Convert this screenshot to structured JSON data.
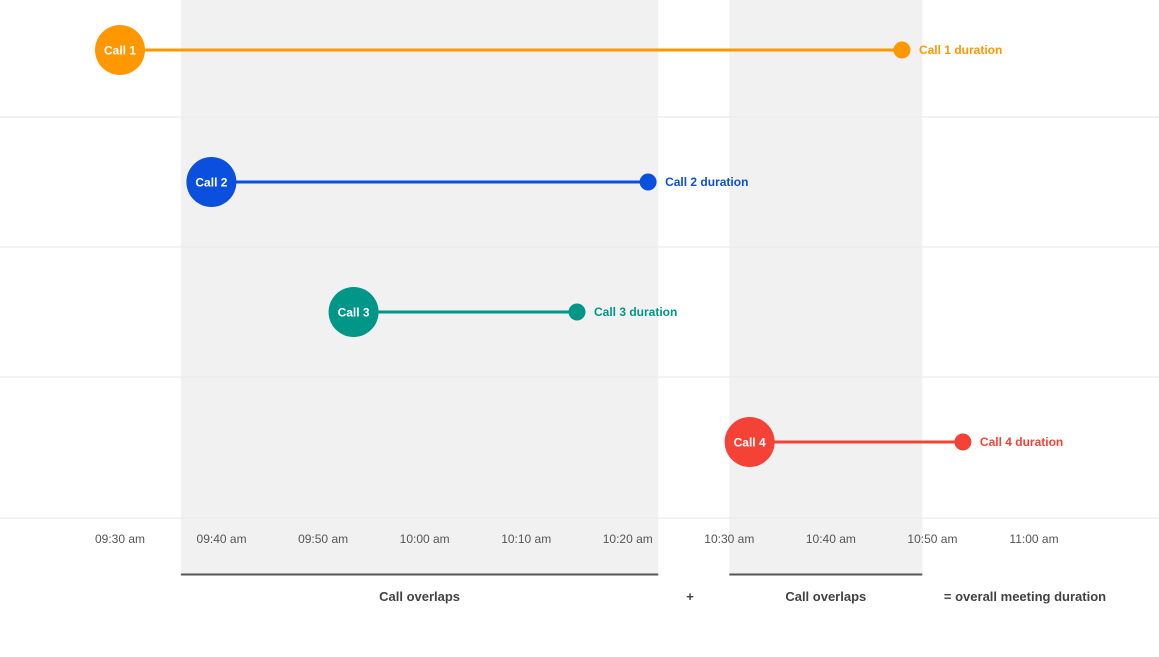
{
  "chart_data": {
    "type": "timeline",
    "x_ticks": [
      "09:30 am",
      "09:40 am",
      "09:50 am",
      "10:00 am",
      "10:10 am",
      "10:20 am",
      "10:30 am",
      "10:40 am",
      "10:50 am",
      "11:00 am"
    ],
    "x_range": [
      "09:30",
      "11:00"
    ],
    "grid": true,
    "series": [
      {
        "name": "Call 1",
        "start": "09:30",
        "end": "10:47",
        "end_label": "Call 1 duration",
        "color": "#ff9800"
      },
      {
        "name": "Call 2",
        "start": "09:39",
        "end": "10:22",
        "end_label": "Call 2 duration",
        "color": "#0a4fde"
      },
      {
        "name": "Call 3",
        "start": "09:53",
        "end": "10:15",
        "end_label": "Call 3 duration",
        "color": "#009688"
      },
      {
        "name": "Call 4",
        "start": "10:32",
        "end": "10:53",
        "end_label": "Call 4 duration",
        "color": "#f44336"
      }
    ],
    "overlap_regions": [
      {
        "start": "09:36",
        "end": "10:23",
        "label": "Call overlaps"
      },
      {
        "start": "10:30",
        "end": "10:49",
        "label": "Call overlaps"
      }
    ],
    "annotations": {
      "plus": "+",
      "equals": "= overall meeting duration"
    },
    "colors": {
      "overlap_fill": "#f1f1f1",
      "text": "#424242",
      "grid": "#eeeeee"
    }
  }
}
